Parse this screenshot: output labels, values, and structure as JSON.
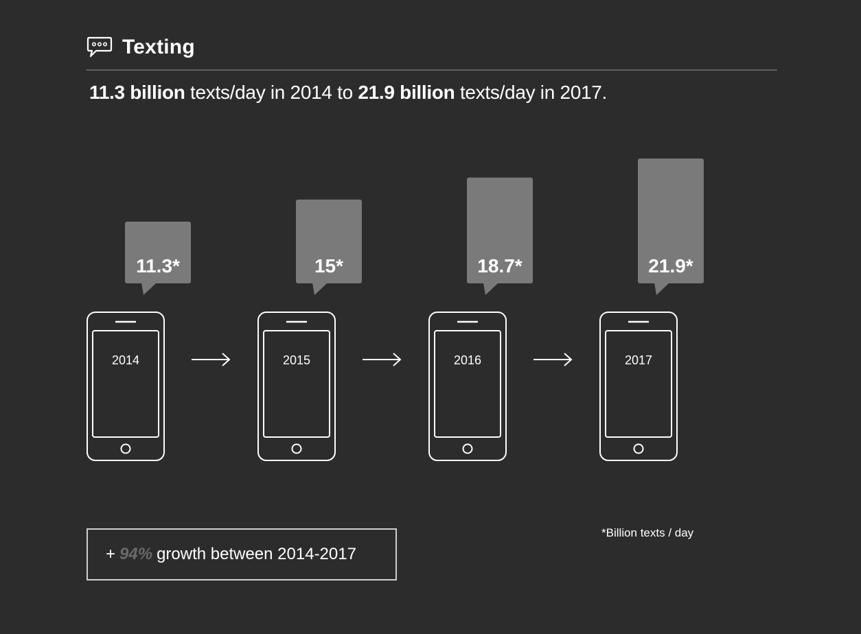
{
  "header": {
    "icon": "speech-bubble-icon",
    "title": "Texting"
  },
  "summary": {
    "value1": "11.3 billion",
    "text1": " texts/day in 2014 to ",
    "value2": "21.9 billion",
    "text2": " texts/day in 2017."
  },
  "chart_data": {
    "type": "bar",
    "categories": [
      "2014",
      "2015",
      "2016",
      "2017"
    ],
    "values": [
      11.3,
      15,
      18.7,
      21.9
    ],
    "value_labels": [
      "11.3*",
      "15*",
      "18.7*",
      "21.9*"
    ],
    "unit_note": "*Billion texts / day",
    "bar_color": "#7a7a7a",
    "icon": "smartphone-icon"
  },
  "growth": {
    "prefix": "+",
    "percent": "94%",
    "suffix": "growth between 2014-2017"
  },
  "footnote": "*Billion texts / day",
  "colors": {
    "background": "#2c2c2c",
    "bubble": "#7a7a7a",
    "outline": "#ffffff",
    "accent_muted": "#6a6a6a"
  }
}
